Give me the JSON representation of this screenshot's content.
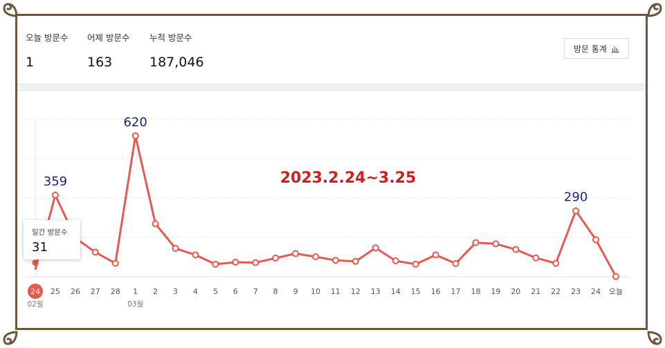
{
  "stats": [
    {
      "label": "오늘 방문수",
      "value": "1"
    },
    {
      "label": "어제 방문수",
      "value": "163"
    },
    {
      "label": "누적 방문수",
      "value": "187,046"
    }
  ],
  "stats_button": {
    "label": "방문 통계",
    "icon": "bar-chart-icon"
  },
  "tooltip": {
    "label": "일간 방문수",
    "value": "31"
  },
  "colors": {
    "line": "#e8584e",
    "frame": "#6b5637",
    "annotation_value": "#1a237e",
    "annotation_title": "#cc1f1f"
  },
  "chart_data": {
    "type": "line",
    "categories": [
      "24",
      "25",
      "26",
      "27",
      "28",
      "1",
      "2",
      "3",
      "4",
      "5",
      "6",
      "7",
      "8",
      "9",
      "10",
      "11",
      "12",
      "13",
      "14",
      "15",
      "16",
      "17",
      "18",
      "19",
      "20",
      "21",
      "22",
      "23",
      "24",
      "오늘"
    ],
    "month_labels": [
      {
        "index": 0,
        "label": "02월"
      },
      {
        "index": 5,
        "label": "03월"
      }
    ],
    "selected_index": 0,
    "series": [
      {
        "values": [
          31,
          359,
          170,
          108,
          59,
          620,
          233,
          125,
          96,
          55,
          64,
          62,
          82,
          102,
          88,
          72,
          68,
          127,
          70,
          55,
          96,
          58,
          150,
          145,
          120,
          83,
          59,
          290,
          163,
          1
        ]
      }
    ],
    "annotations": [
      {
        "index": 1,
        "text": "359"
      },
      {
        "index": 5,
        "text": "620"
      },
      {
        "index": 27,
        "text": "290"
      }
    ],
    "title": "2023.2.24~3.25",
    "ylim": [
      0,
      700
    ],
    "grid": true
  }
}
